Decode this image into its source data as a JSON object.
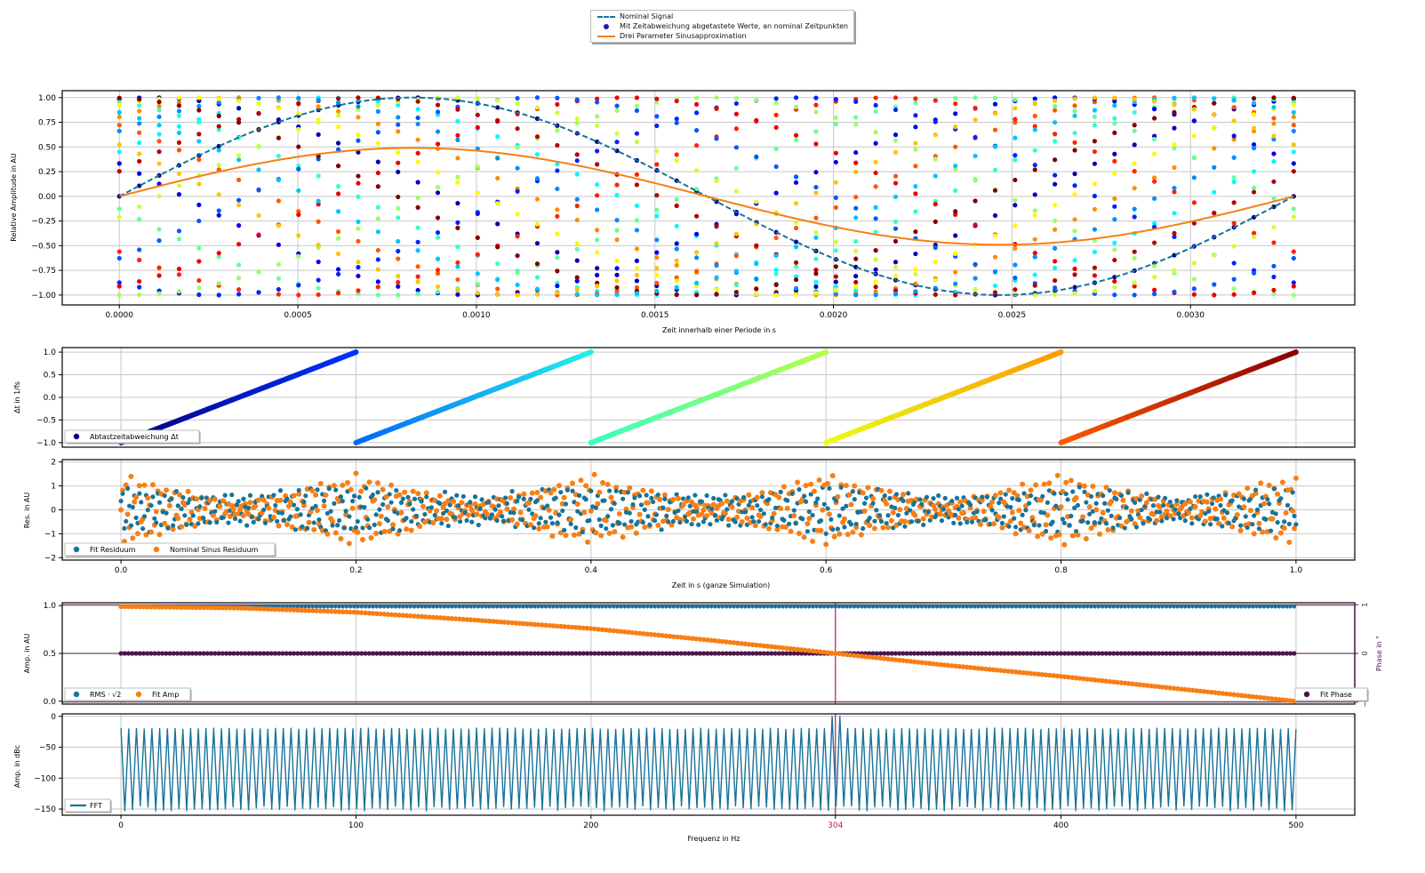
{
  "legend_top": {
    "entries": [
      {
        "label": "Nominal Signal"
      },
      {
        "label": "Mit Zeitabweichung abgetastete Werte, an nominal Zeitpunkten"
      },
      {
        "label": "Drei Parameter Sinusapproximation"
      }
    ]
  },
  "colors": {
    "blue_series": "#16739a",
    "orange_series": "#f77f14",
    "phase_series": "#4a1848",
    "marker_line": "#c2185b",
    "grid": "#c8c8c8",
    "axes": "#000000"
  },
  "chart_data": [
    {
      "type": "scatter",
      "title": "",
      "xlabel": "Zeit innerhalb einer Periode in s",
      "ylabel": "Relative Amplitude in AU",
      "xlim": [
        -0.00016,
        0.00346
      ],
      "ylim": [
        -1.1,
        1.07
      ],
      "xticks": [
        0.0,
        0.0005,
        0.001,
        0.0015,
        0.002,
        0.0025,
        0.003
      ],
      "xtick_labels": [
        "0.0000",
        "0.0005",
        "0.0010",
        "0.0015",
        "0.0020",
        "0.0025",
        "0.0030"
      ],
      "yticks": [
        1.0,
        0.75,
        0.5,
        0.25,
        0.0,
        -0.25,
        -0.5,
        -0.75,
        -1.0
      ],
      "ytick_labels": [
        "1.00",
        "0.75",
        "0.50",
        "0.25",
        "0.00",
        "−0.25",
        "−0.50",
        "−0.75",
        "−1.00"
      ],
      "grid": true,
      "period_s": 0.003289,
      "series": [
        {
          "name": "Nominal Signal",
          "kind": "dashed-line",
          "amplitude": 1.0,
          "color": "#16739a"
        },
        {
          "name": "Mit Zeitabweichung abgetastete Werte, an nominal Zeitpunkten",
          "kind": "scatter",
          "colormap": "jet",
          "num_phase_offsets": 20,
          "points_per_period": 60
        },
        {
          "name": "Drei Parameter Sinusapproximation",
          "kind": "line",
          "amplitude": 0.49,
          "color": "#f77f14"
        }
      ]
    },
    {
      "type": "line",
      "title": "",
      "xlabel": "",
      "ylabel": "Δt in 1/fs",
      "xlim": [
        -0.05,
        1.05
      ],
      "ylim": [
        -1.1,
        1.1
      ],
      "yticks": [
        1.0,
        0.5,
        0.0,
        -0.5,
        -1.0
      ],
      "ytick_labels": [
        "1.0",
        "0.5",
        "0.0",
        "−0.5",
        "−1.0"
      ],
      "grid": true,
      "segments": [
        {
          "x": [
            0.0,
            0.2
          ],
          "y": [
            -1.0,
            1.0
          ],
          "color_start": "#00007f",
          "color_end": "#0033ff"
        },
        {
          "x": [
            0.2,
            0.4
          ],
          "y": [
            -1.0,
            1.0
          ],
          "color_start": "#0066ff",
          "color_end": "#22f0e8"
        },
        {
          "x": [
            0.4,
            0.6
          ],
          "y": [
            -1.0,
            1.0
          ],
          "color_start": "#34ffc0",
          "color_end": "#b2ff48"
        },
        {
          "x": [
            0.6,
            0.8
          ],
          "y": [
            -1.0,
            1.0
          ],
          "color_start": "#e8ff16",
          "color_end": "#ff9800"
        },
        {
          "x": [
            0.8,
            1.0
          ],
          "y": [
            -1.0,
            1.0
          ],
          "color_start": "#ff5a00",
          "color_end": "#8b0000"
        }
      ],
      "legend": {
        "label": "Abtastzeitabweichung Δt",
        "placement": "lower-left"
      }
    },
    {
      "type": "scatter",
      "title": "",
      "xlabel": "Zeit in s (ganze Simulation)",
      "ylabel": "Res. in AU",
      "xlim": [
        -0.05,
        1.05
      ],
      "ylim": [
        -2.1,
        2.1
      ],
      "xticks": [
        0.0,
        0.2,
        0.4,
        0.6,
        0.8,
        1.0
      ],
      "xtick_labels": [
        "0.0",
        "0.2",
        "0.4",
        "0.6",
        "0.8",
        "1.0"
      ],
      "yticks": [
        2,
        1,
        0,
        -1,
        -2
      ],
      "ytick_labels": [
        "2",
        "1",
        "0",
        "−1",
        "−2"
      ],
      "grid": true,
      "envelope_nodes": [
        0.1,
        0.3,
        0.5,
        0.7,
        0.9
      ],
      "series": [
        {
          "name": "Fit Residuum",
          "max_abs": 1.1,
          "color": "#16739a"
        },
        {
          "name": "Nominal Sinus Residuum",
          "max_abs": 1.55,
          "color": "#f77f14"
        }
      ],
      "legend": {
        "placement": "lower-left"
      }
    },
    {
      "type": "scatter",
      "title": "",
      "xlabel": "",
      "ylabel": "Amp. in AU",
      "ylabel_right": "Phase in °",
      "xlim": [
        -25,
        525
      ],
      "ylim": [
        -0.03,
        1.03
      ],
      "ylim_right": [
        -1.04,
        1.04
      ],
      "yticks": [
        1.0,
        0.5,
        0.0
      ],
      "ytick_labels": [
        "1.0",
        "0.5",
        "0.0"
      ],
      "yticks_right": [
        1,
        0,
        -1
      ],
      "ytick_labels_right": [
        "1",
        "0",
        "−1"
      ],
      "grid": true,
      "marker_x": 304,
      "series": [
        {
          "name": "RMS · √2",
          "x_range": [
            0,
            500
          ],
          "y": 0.99,
          "color": "#16739a"
        },
        {
          "name": "Fit Amp",
          "x": [
            0,
            50,
            100,
            150,
            200,
            250,
            304,
            350,
            400,
            450,
            500
          ],
          "y": [
            0.99,
            0.975,
            0.93,
            0.85,
            0.76,
            0.64,
            0.5,
            0.38,
            0.26,
            0.13,
            0.0
          ],
          "color": "#f77f14"
        },
        {
          "name": "Fit Phase",
          "x_range": [
            0,
            500
          ],
          "y_right": 0.0,
          "color": "#4a1848"
        }
      ],
      "legend_left": {
        "placement": "lower-left"
      },
      "legend_right": {
        "placement": "lower-right"
      }
    },
    {
      "type": "line",
      "title": "",
      "xlabel": "Frequenz in Hz",
      "ylabel": "Amp. in dBc",
      "xlim": [
        -25,
        525
      ],
      "ylim": [
        -160,
        4
      ],
      "xticks": [
        0,
        100,
        200,
        304,
        400,
        500
      ],
      "xtick_labels": [
        "0",
        "100",
        "200",
        "304",
        "400",
        "500"
      ],
      "yticks": [
        0,
        -50,
        -100,
        -150
      ],
      "ytick_labels": [
        "0",
        "−50",
        "−100",
        "−150"
      ],
      "grid": true,
      "marker_x": 304,
      "series": [
        {
          "name": "FFT",
          "x_range": [
            0,
            500
          ],
          "peaks_at": -20,
          "floor_at": -145,
          "num_peaks": 152,
          "main_peak_x": 304,
          "main_peak_y": 0,
          "color": "#16739a"
        }
      ],
      "legend": {
        "placement": "lower-left"
      }
    }
  ]
}
